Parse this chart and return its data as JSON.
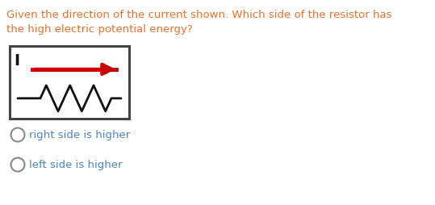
{
  "title_line1": "Given the direction of the current shown. Which side of the resistor has",
  "title_line2": "the high electric potential energy?",
  "title_color": "#e8702a",
  "option1": "right side is higher",
  "option2": "left side is higher",
  "option_color": "#4a86c8",
  "bg_color": "#ffffff",
  "arrow_color": "#cc0000",
  "resistor_color": "#111111",
  "label_I_color": "#111111",
  "box_color": "#444444"
}
